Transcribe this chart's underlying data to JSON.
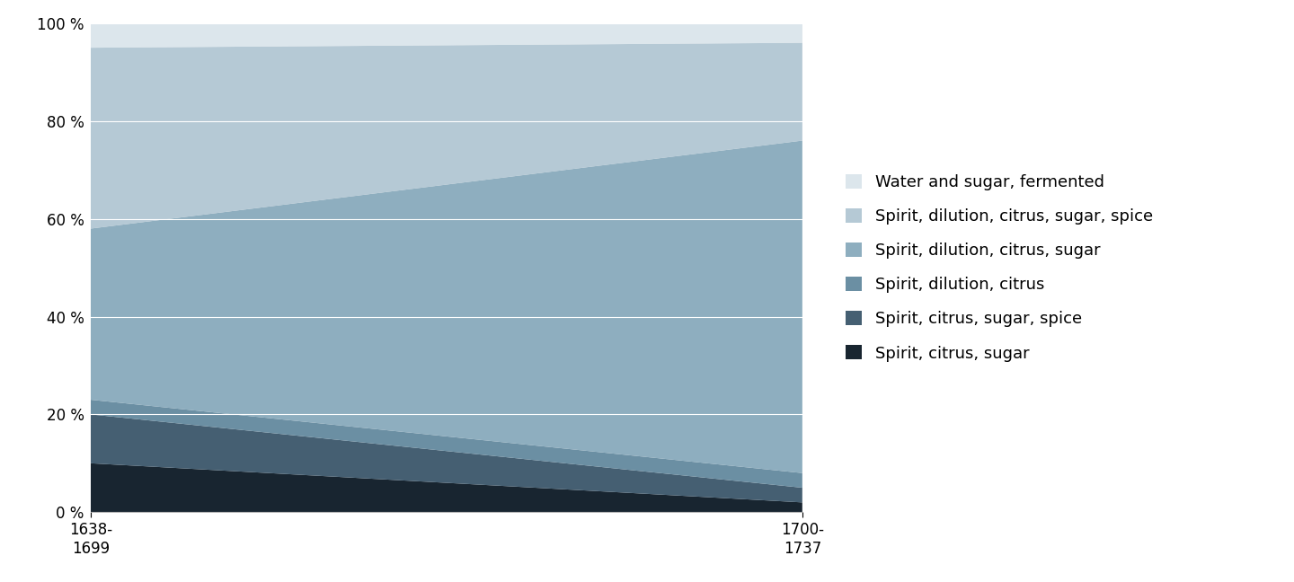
{
  "categories": [
    "1638-\n1699",
    "1700-\n1737"
  ],
  "series": [
    {
      "label": "Water and sugar, fermented",
      "color": "#dce6ec",
      "values": [
        5,
        4
      ]
    },
    {
      "label": "Spirit, dilution, citrus, sugar, spice",
      "color": "#b5c9d5",
      "values": [
        37,
        20
      ]
    },
    {
      "label": "Spirit, dilution, citrus, sugar",
      "color": "#8eaebf",
      "values": [
        35,
        68
      ]
    },
    {
      "label": "Spirit, dilution, citrus",
      "color": "#6b8fa3",
      "values": [
        3,
        3
      ]
    },
    {
      "label": "Spirit, citrus, sugar, spice",
      "color": "#455f72",
      "values": [
        10,
        3
      ]
    },
    {
      "label": "Spirit, citrus, sugar",
      "color": "#182530",
      "values": [
        10,
        2
      ]
    }
  ],
  "x_positions": [
    0,
    1
  ],
  "xlim": [
    0,
    1
  ],
  "ylim": [
    0,
    100
  ],
  "yticks": [
    0,
    20,
    40,
    60,
    80,
    100
  ],
  "ytick_labels": [
    "0 %",
    "20 %",
    "40 %",
    "60 %",
    "80 %",
    "100 %"
  ],
  "bg_color": "#ffffff",
  "axes_bg_color": "#e8ecef",
  "grid_color": "#ffffff",
  "legend_fontsize": 13,
  "tick_fontsize": 12
}
